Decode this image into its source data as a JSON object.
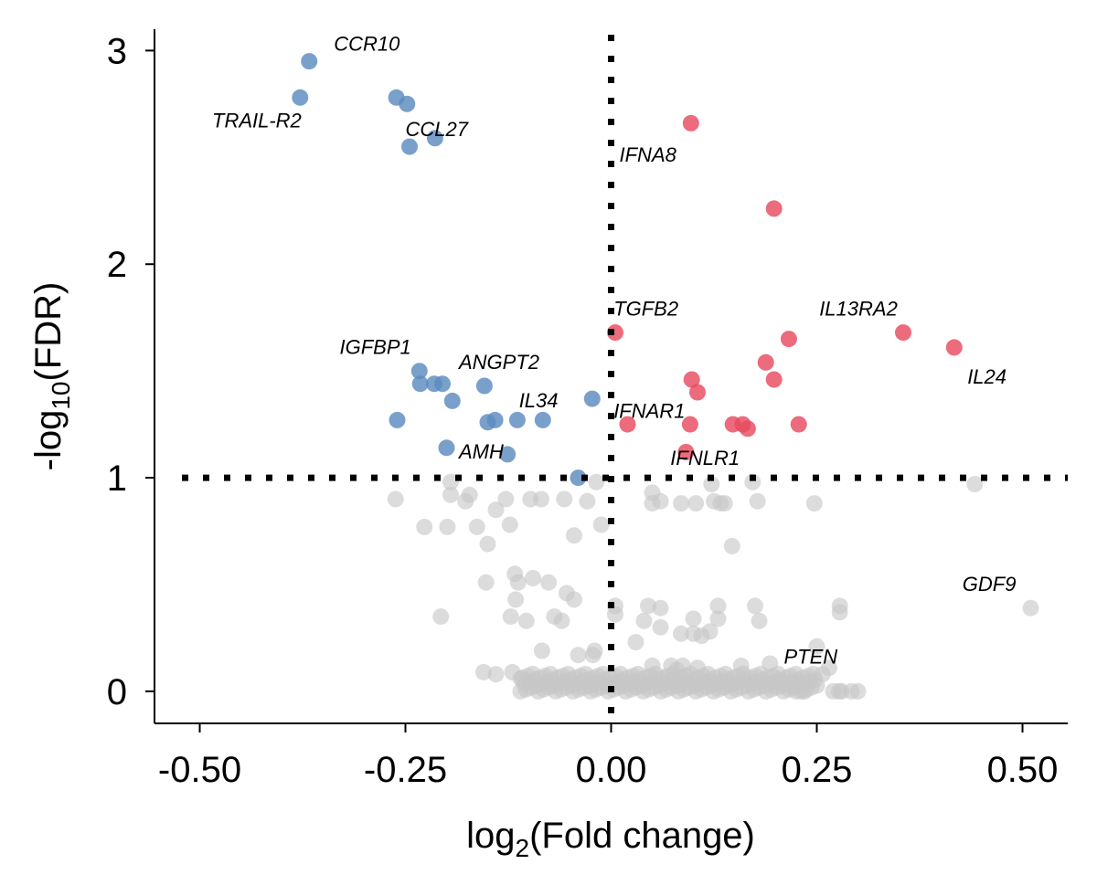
{
  "chart_data": {
    "type": "scatter",
    "xlabel": {
      "pre": "log",
      "sub": "2",
      "post": "(Fold change)"
    },
    "ylabel": {
      "pre": "-log",
      "sub": "10",
      "post": "(FDR)"
    },
    "xlim": [
      -0.555,
      0.555
    ],
    "ylim": [
      -0.15,
      3.1
    ],
    "xticks": [
      -0.5,
      -0.25,
      0.0,
      0.25,
      0.5
    ],
    "xtick_labels": [
      "-0.50",
      "-0.25",
      "0.00",
      "0.25",
      "0.50"
    ],
    "yticks": [
      0,
      1,
      2,
      3
    ],
    "ytick_labels": [
      "0",
      "1",
      "2",
      "3"
    ],
    "thresholds": {
      "x": 0.0,
      "y": 1.0
    },
    "colors": {
      "down": "#5b8bc0",
      "up": "#e84a5f",
      "ns": "#c6c6c6"
    },
    "series": [
      {
        "group": "down",
        "points": [
          [
            -0.367,
            2.95
          ],
          [
            -0.378,
            2.78
          ],
          [
            -0.261,
            2.78
          ],
          [
            -0.248,
            2.75
          ],
          [
            -0.214,
            2.59
          ],
          [
            -0.245,
            2.55
          ],
          [
            -0.233,
            1.5
          ],
          [
            -0.232,
            1.44
          ],
          [
            -0.215,
            1.44
          ],
          [
            -0.205,
            1.44
          ],
          [
            -0.193,
            1.36
          ],
          [
            -0.154,
            1.43
          ],
          [
            -0.26,
            1.27
          ],
          [
            -0.15,
            1.26
          ],
          [
            -0.141,
            1.27
          ],
          [
            -0.114,
            1.27
          ],
          [
            -0.083,
            1.27
          ],
          [
            -0.023,
            1.37
          ],
          [
            -0.2,
            1.14
          ],
          [
            -0.126,
            1.11
          ],
          [
            -0.04,
            1.0
          ]
        ]
      },
      {
        "group": "up",
        "points": [
          [
            0.097,
            2.66
          ],
          [
            0.198,
            2.26
          ],
          [
            0.005,
            1.68
          ],
          [
            0.355,
            1.68
          ],
          [
            0.417,
            1.61
          ],
          [
            0.216,
            1.65
          ],
          [
            0.188,
            1.54
          ],
          [
            0.198,
            1.46
          ],
          [
            0.098,
            1.46
          ],
          [
            0.105,
            1.4
          ],
          [
            0.02,
            1.25
          ],
          [
            0.096,
            1.25
          ],
          [
            0.148,
            1.25
          ],
          [
            0.16,
            1.25
          ],
          [
            0.166,
            1.23
          ],
          [
            0.228,
            1.25
          ],
          [
            0.091,
            1.12
          ]
        ]
      },
      {
        "group": "ns",
        "points": [
          [
            -0.262,
            0.9
          ],
          [
            -0.195,
            0.98
          ],
          [
            -0.195,
            0.92
          ],
          [
            -0.177,
            0.89
          ],
          [
            -0.172,
            0.92
          ],
          [
            -0.128,
            0.9
          ],
          [
            -0.098,
            0.9
          ],
          [
            -0.085,
            0.9
          ],
          [
            -0.057,
            0.9
          ],
          [
            -0.029,
            0.89
          ],
          [
            -0.018,
            0.98
          ],
          [
            -0.14,
            0.85
          ],
          [
            -0.227,
            0.77
          ],
          [
            -0.199,
            0.77
          ],
          [
            -0.163,
            0.77
          ],
          [
            -0.123,
            0.78
          ],
          [
            -0.045,
            0.73
          ],
          [
            -0.012,
            0.78
          ],
          [
            -0.15,
            0.69
          ],
          [
            -0.152,
            0.51
          ],
          [
            -0.117,
            0.55
          ],
          [
            -0.113,
            0.51
          ],
          [
            -0.095,
            0.53
          ],
          [
            -0.076,
            0.51
          ],
          [
            -0.054,
            0.46
          ],
          [
            -0.045,
            0.43
          ],
          [
            -0.116,
            0.43
          ],
          [
            -0.207,
            0.35
          ],
          [
            -0.122,
            0.35
          ],
          [
            -0.103,
            0.33
          ],
          [
            -0.069,
            0.35
          ],
          [
            -0.06,
            0.33
          ],
          [
            -0.084,
            0.19
          ],
          [
            -0.04,
            0.17
          ],
          [
            -0.02,
            0.19
          ],
          [
            -0.022,
            0.17
          ],
          [
            -0.155,
            0.09
          ],
          [
            -0.14,
            0.08
          ],
          [
            -0.12,
            0.09
          ],
          [
            -0.11,
            0.06
          ],
          [
            0.005,
            0.36
          ],
          [
            0.005,
            0.4
          ],
          [
            0.03,
            0.23
          ],
          [
            0.045,
            0.4
          ],
          [
            0.04,
            0.33
          ],
          [
            0.06,
            0.39
          ],
          [
            0.06,
            0.3
          ],
          [
            0.085,
            0.27
          ],
          [
            0.1,
            0.34
          ],
          [
            0.11,
            0.26
          ],
          [
            0.1,
            0.27
          ],
          [
            0.13,
            0.4
          ],
          [
            0.13,
            0.34
          ],
          [
            0.12,
            0.28
          ],
          [
            0.087,
            0.12
          ],
          [
            0.105,
            0.11
          ],
          [
            0.158,
            0.12
          ],
          [
            0.175,
            0.4
          ],
          [
            0.18,
            0.33
          ],
          [
            0.05,
            0.93
          ],
          [
            0.05,
            0.88
          ],
          [
            0.06,
            0.89
          ],
          [
            0.085,
            0.88
          ],
          [
            0.103,
            0.88
          ],
          [
            0.122,
            0.97
          ],
          [
            0.125,
            0.89
          ],
          [
            0.133,
            0.88
          ],
          [
            0.138,
            0.88
          ],
          [
            0.172,
            0.98
          ],
          [
            0.178,
            0.89
          ],
          [
            0.247,
            0.88
          ],
          [
            0.147,
            0.68
          ],
          [
            0.442,
            0.97
          ],
          [
            0.51,
            0.39
          ],
          [
            0.278,
            0.4
          ],
          [
            0.278,
            0.37
          ],
          [
            0.25,
            0.21
          ],
          [
            0.265,
            0.11
          ],
          [
            0.257,
            0.08
          ],
          [
            0.05,
            0.12
          ],
          [
            0.073,
            0.12
          ],
          [
            0.08,
            0.1
          ],
          [
            0.193,
            0.13
          ],
          [
            0.21,
            0.04
          ],
          [
            0.225,
            0.0
          ],
          [
            0.235,
            0.0
          ],
          [
            0.27,
            0.0
          ],
          [
            0.28,
            0.0
          ],
          [
            0.3,
            0.0
          ],
          [
            0.292,
            0.0
          ],
          [
            0.277,
            0.0
          ]
        ]
      }
    ],
    "ns_dense_band": {
      "x_min": -0.11,
      "x_max": 0.25,
      "y_max": 0.09,
      "count": 170
    },
    "annotations": [
      {
        "text": "CCR10",
        "x": -0.337,
        "y": 3.0
      },
      {
        "text": "TRAIL-R2",
        "x": -0.485,
        "y": 2.64
      },
      {
        "text": "CCL27",
        "x": -0.25,
        "y": 2.6
      },
      {
        "text": "IFNA8",
        "x": 0.01,
        "y": 2.48
      },
      {
        "text": "TGFB2",
        "x": 0.003,
        "y": 1.76
      },
      {
        "text": "IL13RA2",
        "x": 0.253,
        "y": 1.76
      },
      {
        "text": "IGFBP1",
        "x": -0.33,
        "y": 1.58
      },
      {
        "text": "ANGPT2",
        "x": -0.185,
        "y": 1.51
      },
      {
        "text": "IL24",
        "x": 0.433,
        "y": 1.44
      },
      {
        "text": "IL34",
        "x": -0.112,
        "y": 1.33
      },
      {
        "text": "IFNAR1",
        "x": 0.003,
        "y": 1.28
      },
      {
        "text": "AMH",
        "x": -0.185,
        "y": 1.09
      },
      {
        "text": "IFNLR1",
        "x": 0.072,
        "y": 1.06
      },
      {
        "text": "GDF9",
        "x": 0.427,
        "y": 0.47
      },
      {
        "text": "PTEN",
        "x": 0.21,
        "y": 0.13
      }
    ]
  }
}
